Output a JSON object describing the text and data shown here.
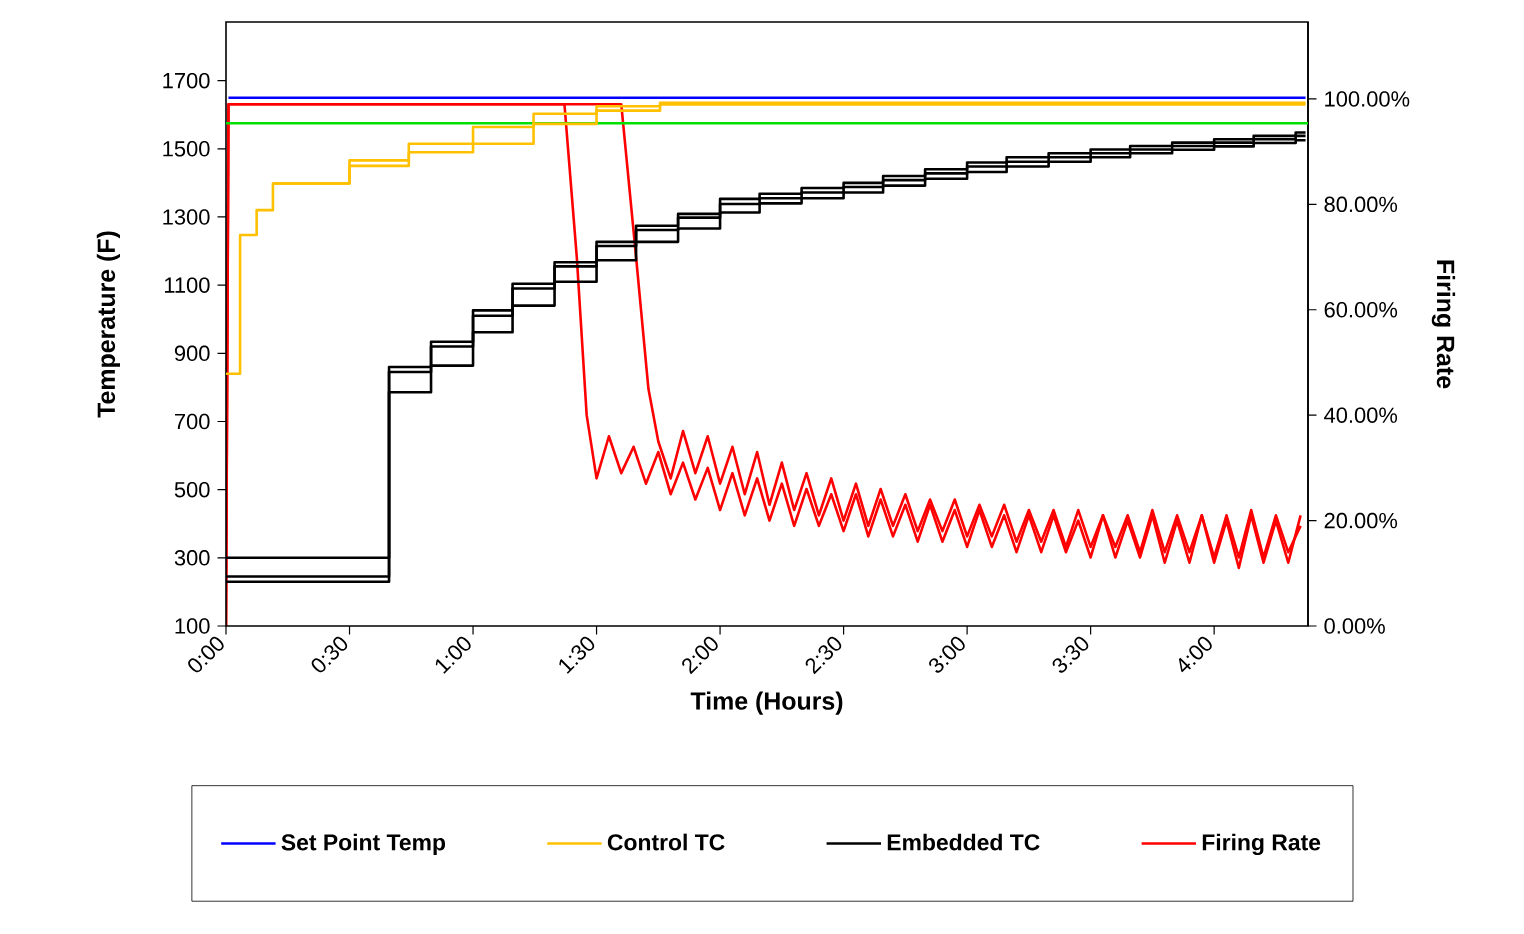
{
  "chart_data": {
    "type": "line",
    "xlabel": "Time (Hours)",
    "ylabel": "Temperature (F)",
    "y2label": "Firing Rate",
    "xlim": [
      0,
      4.38
    ],
    "ylim": [
      100,
      1872
    ],
    "y2lim": [
      0,
      114.6
    ],
    "xticks": [
      {
        "value": 0,
        "label": "0:00"
      },
      {
        "value": 0.5,
        "label": "0:30"
      },
      {
        "value": 1,
        "label": "1:00"
      },
      {
        "value": 1.5,
        "label": "1:30"
      },
      {
        "value": 2,
        "label": "2:00"
      },
      {
        "value": 2.5,
        "label": "2:30"
      },
      {
        "value": 3,
        "label": "3:00"
      },
      {
        "value": 3.5,
        "label": "3:30"
      },
      {
        "value": 4,
        "label": "4:00"
      }
    ],
    "yticks": [
      100,
      300,
      500,
      700,
      900,
      1100,
      1300,
      1500,
      1700
    ],
    "y2ticks": [
      {
        "value": 0,
        "label": "0.00%"
      },
      {
        "value": 20,
        "label": "20.00%"
      },
      {
        "value": 40,
        "label": "40.00%"
      },
      {
        "value": 60,
        "label": "60.00%"
      },
      {
        "value": 80,
        "label": "80.00%"
      },
      {
        "value": 100,
        "label": "100.00%"
      }
    ],
    "legend": "bottom",
    "grid": false,
    "ref_lines": [
      {
        "axis": "y",
        "value": 1575,
        "color": "#00e000"
      }
    ],
    "series": [
      {
        "name": "Set Point Temp",
        "color": "#0000ff",
        "type": "line",
        "x": [
          0.01,
          4.37
        ],
        "values": [
          1650,
          1650
        ]
      },
      {
        "name": "Control TC",
        "color": "#ffc000",
        "type": "step",
        "x": [
          0,
          0.057,
          0.124,
          0.19,
          0.5,
          0.74,
          1.0,
          1.245,
          1.5,
          1.757,
          4.37
        ],
        "values": [
          840,
          1247,
          1320,
          1398,
          1466,
          1515,
          1564,
          1603,
          1625,
          1635,
          1635
        ]
      },
      {
        "color": "#ffc000",
        "type": "step",
        "x": [
          0.19,
          0.5,
          0.74,
          1.0,
          1.245,
          1.5,
          1.757,
          4.37
        ],
        "values": [
          1398,
          1450,
          1490,
          1515,
          1573,
          1612,
          1630,
          1630
        ]
      },
      {
        "name": "Embedded TC",
        "color": "#000000",
        "type": "step",
        "x": [
          0,
          0.66,
          0.83,
          1.0,
          1.16,
          1.33,
          1.5,
          1.66,
          1.83,
          2.0,
          2.16,
          2.33,
          2.5,
          2.66,
          2.83,
          3.0,
          3.16,
          3.33,
          3.5,
          3.66,
          3.83,
          4.0,
          4.16,
          4.33,
          4.37
        ],
        "values": [
          300,
          860,
          934,
          1026,
          1104,
          1167,
          1227,
          1274,
          1309,
          1353,
          1368,
          1385,
          1400,
          1420,
          1440,
          1460,
          1475,
          1487,
          1498,
          1508,
          1518,
          1528,
          1538,
          1548,
          1548
        ]
      },
      {
        "color": "#000000",
        "type": "step",
        "x": [
          0,
          0.66,
          0.83,
          1.0,
          1.16,
          1.33,
          1.5,
          1.66,
          1.83,
          2.0,
          2.16,
          2.33,
          2.5,
          2.66,
          2.83,
          3.0,
          3.16,
          3.33,
          3.5,
          3.66,
          3.83,
          4.0,
          4.16,
          4.33,
          4.37
        ],
        "values": [
          245,
          845,
          920,
          1010,
          1090,
          1155,
          1215,
          1262,
          1298,
          1338,
          1355,
          1372,
          1388,
          1408,
          1428,
          1448,
          1462,
          1475,
          1487,
          1498,
          1508,
          1518,
          1528,
          1538,
          1538
        ]
      },
      {
        "color": "#000000",
        "type": "step",
        "x": [
          0,
          0.66,
          0.83,
          1.0,
          1.16,
          1.33,
          1.5,
          1.66,
          1.83,
          2.0,
          2.16,
          2.33,
          2.5,
          2.66,
          2.83,
          3.0,
          3.16,
          3.33,
          3.5,
          3.66,
          3.83,
          4.0,
          4.16,
          4.33,
          4.37
        ],
        "values": [
          230,
          786,
          864,
          962,
          1040,
          1110,
          1173,
          1227,
          1266,
          1313,
          1340,
          1355,
          1372,
          1392,
          1412,
          1432,
          1448,
          1462,
          1475,
          1487,
          1497,
          1507,
          1517,
          1525,
          1525
        ]
      },
      {
        "name": "Firing Rate",
        "color": "#ff0000",
        "axis": "y2",
        "x": [
          0,
          0.01,
          1.37,
          1.42,
          1.46,
          1.5,
          1.55,
          1.6,
          1.65,
          1.7,
          1.75,
          1.8,
          1.85,
          1.9,
          1.95,
          2.0,
          2.05,
          2.1,
          2.15,
          2.2,
          2.25,
          2.3,
          2.35,
          2.4,
          2.45,
          2.5,
          2.55,
          2.6,
          2.65,
          2.7,
          2.75,
          2.8,
          2.85,
          2.9,
          2.95,
          3.0,
          3.05,
          3.1,
          3.15,
          3.2,
          3.25,
          3.3,
          3.35,
          3.4,
          3.45,
          3.5,
          3.55,
          3.6,
          3.65,
          3.7,
          3.75,
          3.8,
          3.85,
          3.9,
          3.95,
          4.0,
          4.05,
          4.1,
          4.15,
          4.2,
          4.25,
          4.3,
          4.35
        ],
        "values": [
          0,
          99,
          99,
          70,
          40,
          28,
          36,
          29,
          34,
          27,
          33,
          25,
          31,
          24,
          30,
          22,
          29,
          21,
          28,
          20,
          27,
          19,
          26,
          19,
          25,
          18,
          25,
          17,
          24,
          17,
          23,
          16,
          23,
          16,
          22,
          15,
          22,
          15,
          21,
          14,
          21,
          14,
          21,
          14,
          20,
          13,
          21,
          13,
          20,
          13,
          21,
          12,
          20,
          12,
          21,
          12,
          20,
          11,
          21,
          12,
          20,
          12,
          21
        ]
      },
      {
        "color": "#ff0000",
        "axis": "y2",
        "x": [
          0,
          0.01,
          1.6,
          1.66,
          1.71,
          1.75,
          1.8,
          1.85,
          1.9,
          1.95,
          2.0,
          2.05,
          2.1,
          2.15,
          2.2,
          2.25,
          2.3,
          2.35,
          2.4,
          2.45,
          2.5,
          2.55,
          2.6,
          2.65,
          2.7,
          2.75,
          2.8,
          2.85,
          2.9,
          2.95,
          3.0,
          3.05,
          3.1,
          3.15,
          3.2,
          3.25,
          3.3,
          3.35,
          3.4,
          3.45,
          3.5,
          3.55,
          3.6,
          3.65,
          3.7,
          3.75,
          3.8,
          3.85,
          3.9,
          3.95,
          4.0,
          4.05,
          4.1,
          4.15,
          4.2,
          4.25,
          4.3,
          4.35
        ],
        "values": [
          0,
          99,
          99,
          70,
          45,
          35,
          28,
          37,
          29,
          36,
          27,
          34,
          25,
          33,
          23,
          31,
          22,
          29,
          21,
          28,
          20,
          27,
          19,
          26,
          19,
          25,
          18,
          24,
          18,
          24,
          17,
          23,
          17,
          23,
          16,
          22,
          16,
          22,
          15,
          22,
          15,
          21,
          15,
          21,
          14,
          22,
          14,
          21,
          14,
          21,
          13,
          21,
          13,
          22,
          13,
          21,
          14,
          19
        ]
      }
    ]
  }
}
